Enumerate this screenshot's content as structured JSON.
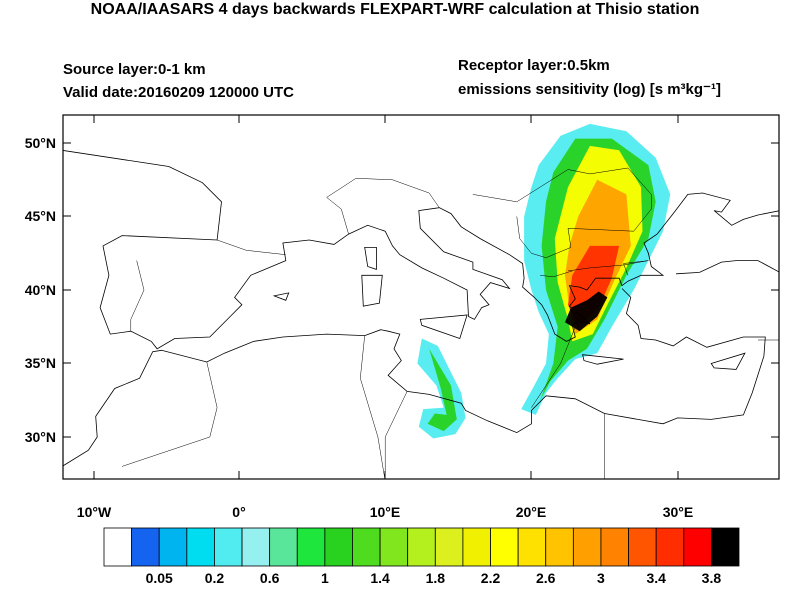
{
  "header": {
    "title": "NOAA/IAASARS 4 days backwards FLEXPART-WRF calculation at Thisio station",
    "source_layer": "Source layer:0-1 km",
    "valid_date": "Valid date:20160209 120000 UTC",
    "receptor_layer": "Receptor layer:0.5km",
    "units": "emissions sensitivity (log) [s m³kg⁻¹]"
  },
  "map": {
    "lat_labels": [
      "50°N",
      "45°N",
      "40°N",
      "35°N",
      "30°N"
    ],
    "lon_labels": [
      "10°W",
      "0°",
      "10°E",
      "20°E",
      "30°E"
    ]
  },
  "colorbar": {
    "colors": [
      "#ffffff",
      "#1464f0",
      "#00b4f0",
      "#00dcf0",
      "#50ecf0",
      "#96f0f0",
      "#5ae69a",
      "#1ee63c",
      "#28d21e",
      "#50dc1e",
      "#82e61e",
      "#b4f01e",
      "#dcf01e",
      "#f0f000",
      "#ffff00",
      "#ffe100",
      "#ffc300",
      "#ffa000",
      "#ff8200",
      "#ff5500",
      "#ff2d00",
      "#ff0000",
      "#000000"
    ],
    "labels": [
      0.05,
      0.2,
      0.6,
      1,
      1.4,
      1.8,
      2.2,
      2.6,
      3,
      3.4,
      3.8
    ]
  }
}
